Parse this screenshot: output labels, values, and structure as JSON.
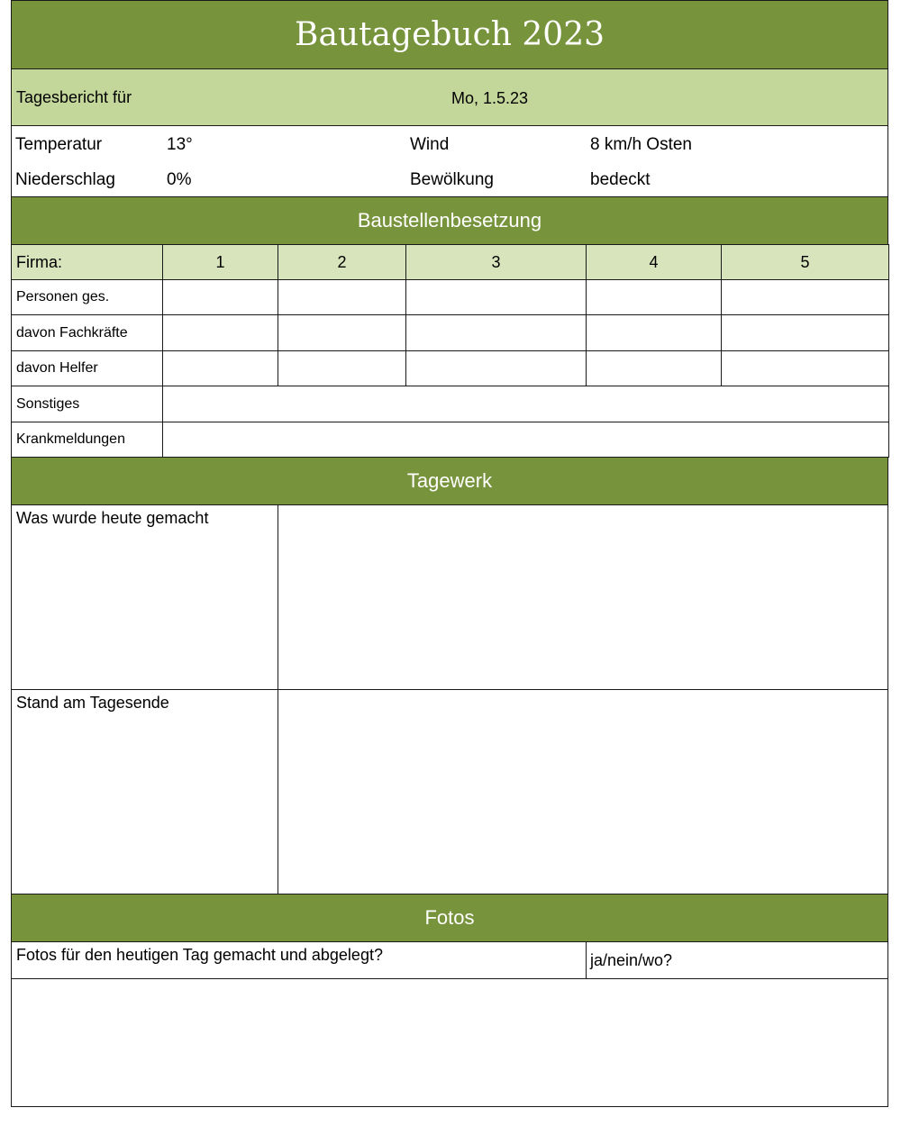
{
  "title": "Bautagebuch 2023",
  "report": {
    "label": "Tagesbericht für",
    "date": "Mo, 1.5.23"
  },
  "weather": {
    "temperature_label": "Temperatur",
    "temperature_value": "13°",
    "wind_label": "Wind",
    "wind_value": "8 km/h Osten",
    "precipitation_label": "Niederschlag",
    "precipitation_value": "0%",
    "clouds_label": "Bewölkung",
    "clouds_value": "bedeckt"
  },
  "staffing": {
    "heading": "Baustellenbesetzung",
    "firm_label": "Firma:",
    "firms": [
      "1",
      "2",
      "3",
      "4",
      "5"
    ],
    "rows": [
      "Personen ges.",
      "davon Fachkräfte",
      "davon Helfer"
    ],
    "other_label": "Sonstiges",
    "sick_label": "Krankmeldungen"
  },
  "work": {
    "heading": "Tagewerk",
    "done_label": "Was wurde heute gemacht",
    "status_label": "Stand am Tagesende"
  },
  "photos": {
    "heading": "Fotos",
    "question": "Fotos für den heutigen Tag gemacht und abgelegt?",
    "answer_hint": "ja/nein/wo?"
  },
  "colors": {
    "dark_green": "#77933C",
    "light_green": "#C4D79B",
    "lighter_green": "#D8E4BC"
  }
}
